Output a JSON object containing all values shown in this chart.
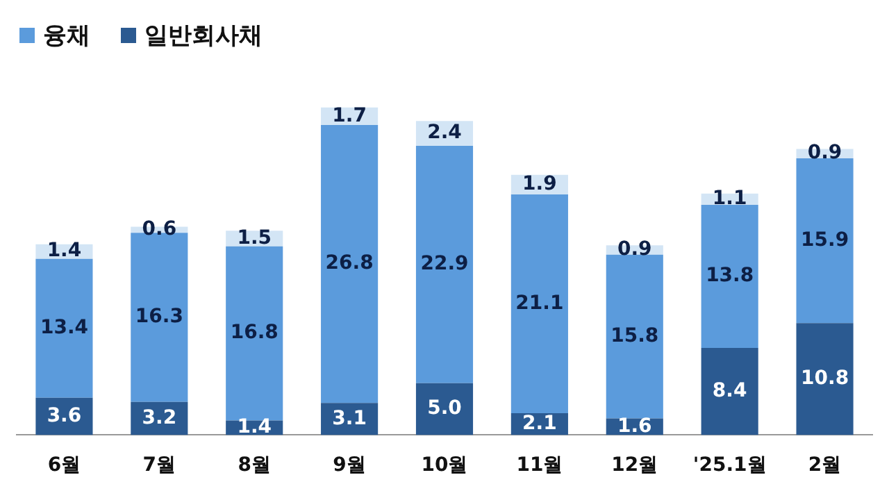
{
  "chart_data": {
    "type": "bar",
    "stacked": true,
    "categories": [
      "6월",
      "7월",
      "8월",
      "9월",
      "10월",
      "11월",
      "12월",
      "'25.1월",
      "2월"
    ],
    "series": [
      {
        "name": "일반회사채",
        "color": "#2b5a91",
        "values": [
          3.6,
          3.2,
          1.4,
          3.1,
          5.0,
          2.1,
          1.6,
          8.4,
          10.8
        ],
        "value_labels": [
          "3.6",
          "3.2",
          "1.4",
          "3.1",
          "5.0",
          "2.1",
          "1.6",
          "8.4",
          "10.8"
        ]
      },
      {
        "name": "융채",
        "color": "#5b9bdc",
        "values": [
          13.4,
          16.3,
          16.8,
          26.8,
          22.9,
          21.1,
          15.8,
          13.8,
          15.9
        ],
        "value_labels": [
          "13.4",
          "16.3",
          "16.8",
          "26.8",
          "22.9",
          "21.1",
          "15.8",
          "13.8",
          "15.9"
        ]
      },
      {
        "color": "#d3e5f5",
        "values": [
          1.4,
          0.6,
          1.5,
          1.7,
          2.4,
          1.9,
          0.9,
          1.1,
          0.9
        ],
        "value_labels": [
          "1.4",
          "0.6",
          "1.5",
          "1.7",
          "2.4",
          "1.9",
          "0.9",
          "1.1",
          "0.9"
        ]
      }
    ],
    "legend": "top left",
    "grid": false
  }
}
